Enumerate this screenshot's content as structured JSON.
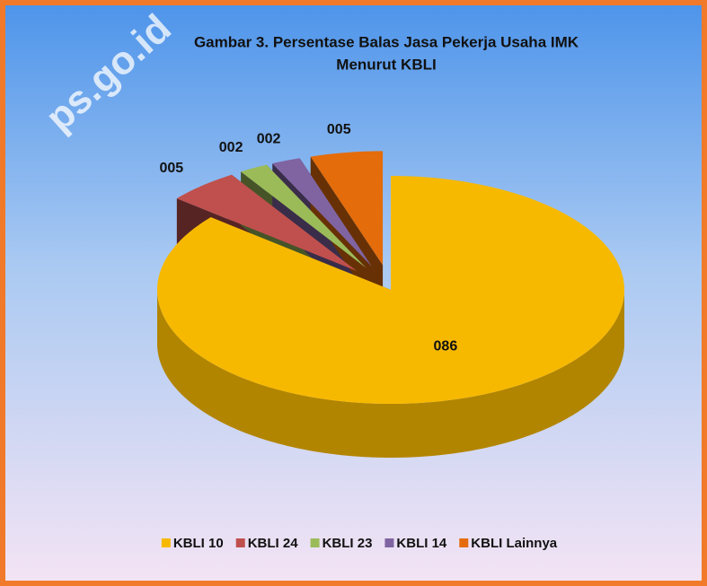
{
  "chart_data": {
    "type": "pie3d",
    "title": [
      "Gambar 3. Persentase  Balas Jasa Pekerja Usaha IMK",
      "Menurut KBLI"
    ],
    "watermark": "ps.go.id",
    "categories": [
      "KBLI 10",
      "KBLI 24",
      "KBLI 23",
      "KBLI 14",
      "KBLI Lainnya"
    ],
    "values": [
      86,
      5,
      2,
      2,
      5
    ],
    "value_labels": [
      "086",
      "005",
      "002",
      "002",
      "005"
    ],
    "colors": [
      "#f7b900",
      "#c0504d",
      "#9bbb59",
      "#8064a2",
      "#e46c0a"
    ],
    "legend": "bottom"
  }
}
